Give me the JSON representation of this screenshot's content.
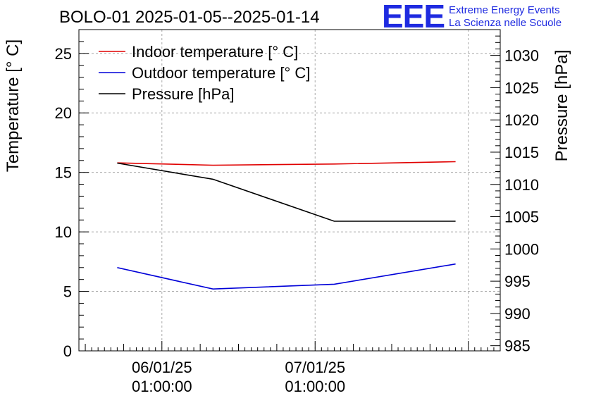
{
  "logo": {
    "mark": "EEE",
    "line1": "Extreme Energy Events",
    "line2": "La Scienza nelle Scuole",
    "color": "#1f2be0"
  },
  "chart_data": {
    "type": "line",
    "title": "BOLO-01 2025-01-05--2025-01-14",
    "ylabel": "Temperature [° C]",
    "y2label": "Pressure [hPa]",
    "x": [
      "05/01/25 18:00",
      "06/01/25 09:00",
      "07/01/25 04:00",
      "07/01/25 23:00"
    ],
    "x_ticks": [
      {
        "line1": "06/01/25",
        "line2": "01:00:00"
      },
      {
        "line1": "07/01/25",
        "line2": "01:00:00"
      }
    ],
    "ylim": [
      0,
      27
    ],
    "y_ticks": [
      0,
      5,
      10,
      15,
      20,
      25
    ],
    "y2lim": [
      984.2,
      1034
    ],
    "y2_ticks": [
      985,
      990,
      995,
      1000,
      1005,
      1010,
      1015,
      1020,
      1025,
      1030
    ],
    "grid": true,
    "legend_position": "top-left",
    "series": [
      {
        "name": "Indoor temperature [° C]",
        "axis": "left",
        "color": "#e00000",
        "values": [
          15.8,
          15.6,
          15.7,
          15.9
        ]
      },
      {
        "name": "Outdoor temperature [° C]",
        "axis": "left",
        "color": "#0000d8",
        "values": [
          7.0,
          5.2,
          5.6,
          7.3
        ]
      },
      {
        "name": "Pressure [hPa]",
        "axis": "right",
        "color": "#000000",
        "values": [
          1013.3,
          1010.8,
          1004.3,
          1004.3
        ]
      }
    ]
  }
}
